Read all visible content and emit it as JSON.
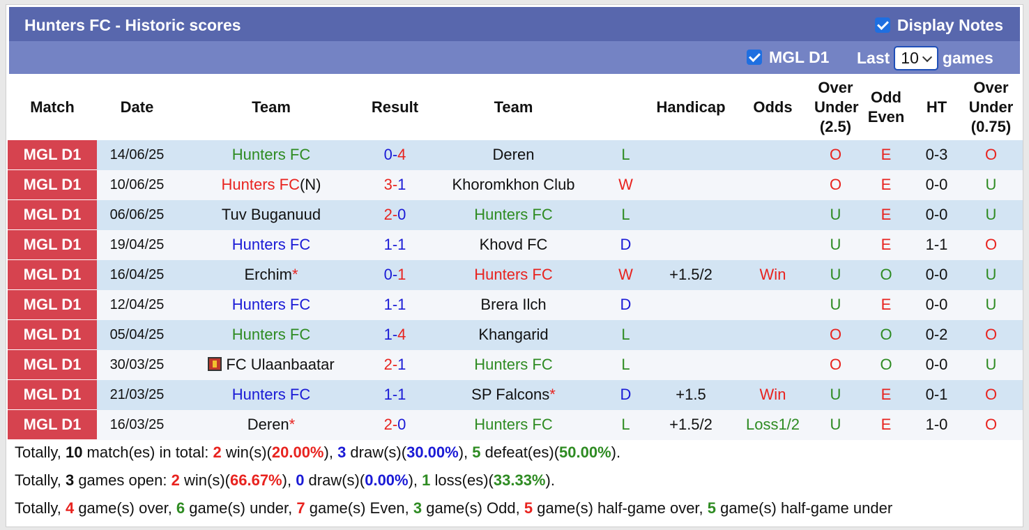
{
  "header": {
    "title": "Hunters FC - Historic scores",
    "display_notes": "Display Notes",
    "league": "MGL D1",
    "last": "Last",
    "games_count": "10",
    "games": "games"
  },
  "colors": {
    "win": "#e8231f",
    "draw": "#1a1ad6",
    "loss": "#2e8b22",
    "match_bg": "#d6434f",
    "row_a": "#d3e4f3",
    "row_b": "#f4f6fa"
  },
  "table": {
    "columns": [
      "Match",
      "Date",
      "Team",
      "Result",
      "Team",
      null,
      "Handicap",
      "Odds",
      "Over Under (2.5)",
      "Odd Even",
      "HT",
      "Over Under (0.75)"
    ],
    "rows": [
      {
        "match": "MGL D1",
        "date": "14/06/25",
        "home": "Hunters FC",
        "home_note": null,
        "score": "0-4",
        "away": "Deren",
        "away_note": null,
        "outcome": "L",
        "handicap": null,
        "odds": null,
        "over_under": "O",
        "odd_even": "E",
        "ht": "0-3",
        "over_under_ht": "O"
      },
      {
        "match": "MGL D1",
        "date": "10/06/25",
        "home": "Hunters FC",
        "home_note": "(N)",
        "score": "3-1",
        "away": "Khoromkhon Club",
        "away_note": null,
        "outcome": "W",
        "handicap": null,
        "odds": null,
        "over_under": "O",
        "odd_even": "E",
        "ht": "0-0",
        "over_under_ht": "U"
      },
      {
        "match": "MGL D1",
        "date": "06/06/25",
        "home": "Tuv Buganuud",
        "home_note": null,
        "score": "2-0",
        "away": "Hunters FC",
        "away_note": null,
        "outcome": "L",
        "handicap": null,
        "odds": null,
        "over_under": "U",
        "odd_even": "E",
        "ht": "0-0",
        "over_under_ht": "U"
      },
      {
        "match": "MGL D1",
        "date": "19/04/25",
        "home": "Hunters FC",
        "home_note": null,
        "score": "1-1",
        "away": "Khovd FC",
        "away_note": null,
        "outcome": "D",
        "handicap": null,
        "odds": null,
        "over_under": "U",
        "odd_even": "E",
        "ht": "1-1",
        "over_under_ht": "O"
      },
      {
        "match": "MGL D1",
        "date": "16/04/25",
        "home": "Erchim",
        "home_note": "*",
        "score": "0-1",
        "away": "Hunters FC",
        "away_note": null,
        "outcome": "W",
        "handicap": "+1.5/2",
        "odds": "Win",
        "over_under": "U",
        "odd_even": "O",
        "ht": "0-0",
        "over_under_ht": "U"
      },
      {
        "match": "MGL D1",
        "date": "12/04/25",
        "home": "Hunters FC",
        "home_note": null,
        "score": "1-1",
        "away": "Brera Ilch",
        "away_note": null,
        "outcome": "D",
        "handicap": null,
        "odds": null,
        "over_under": "U",
        "odd_even": "E",
        "ht": "0-0",
        "over_under_ht": "U"
      },
      {
        "match": "MGL D1",
        "date": "05/04/25",
        "home": "Hunters FC",
        "home_note": null,
        "score": "1-4",
        "away": "Khangarid",
        "away_note": null,
        "outcome": "L",
        "handicap": null,
        "odds": null,
        "over_under": "O",
        "odd_even": "O",
        "ht": "0-2",
        "over_under_ht": "O"
      },
      {
        "match": "MGL D1",
        "date": "30/03/25",
        "home": "FC Ulaanbaatar",
        "home_note": null,
        "score": "2-1",
        "away": "Hunters FC",
        "away_note": null,
        "outcome": "L",
        "handicap": null,
        "odds": null,
        "over_under": "O",
        "odd_even": "O",
        "ht": "0-0",
        "over_under_ht": "U"
      },
      {
        "match": "MGL D1",
        "date": "21/03/25",
        "home": "Hunters FC",
        "home_note": null,
        "score": "1-1",
        "away": "SP Falcons",
        "away_note": "*",
        "outcome": "D",
        "handicap": "+1.5",
        "odds": "Win",
        "over_under": "U",
        "odd_even": "E",
        "ht": "0-1",
        "over_under_ht": "O"
      },
      {
        "match": "MGL D1",
        "date": "16/03/25",
        "home": "Deren",
        "home_note": "*",
        "score": "2-0",
        "away": "Hunters FC",
        "away_note": null,
        "outcome": "L",
        "handicap": "+1.5/2",
        "odds": "Loss1/2",
        "over_under": "U",
        "odd_even": "E",
        "ht": "1-0",
        "over_under_ht": "O"
      }
    ]
  },
  "summary": [
    [
      {
        "text": "Totally, "
      },
      {
        "text": "10",
        "bold": true
      },
      {
        "text": " match(es) in total: "
      },
      {
        "text": "2",
        "bold": true,
        "color": "win"
      },
      {
        "text": " win(s)("
      },
      {
        "text": "20.00%",
        "bold": true,
        "color": "win"
      },
      {
        "text": "), "
      },
      {
        "text": "3",
        "bold": true,
        "color": "draw"
      },
      {
        "text": " draw(s)("
      },
      {
        "text": "30.00%",
        "bold": true,
        "color": "draw"
      },
      {
        "text": "), "
      },
      {
        "text": "5",
        "bold": true,
        "color": "loss"
      },
      {
        "text": " defeat(es)("
      },
      {
        "text": "50.00%",
        "bold": true,
        "color": "loss"
      },
      {
        "text": ")."
      }
    ],
    [
      {
        "text": "Totally, "
      },
      {
        "text": "3",
        "bold": true
      },
      {
        "text": " games open: "
      },
      {
        "text": "2",
        "bold": true,
        "color": "win"
      },
      {
        "text": " win(s)("
      },
      {
        "text": "66.67%",
        "bold": true,
        "color": "win"
      },
      {
        "text": "), "
      },
      {
        "text": "0",
        "bold": true,
        "color": "draw"
      },
      {
        "text": " draw(s)("
      },
      {
        "text": "0.00%",
        "bold": true,
        "color": "draw"
      },
      {
        "text": "), "
      },
      {
        "text": "1",
        "bold": true,
        "color": "loss"
      },
      {
        "text": " loss(es)("
      },
      {
        "text": "33.33%",
        "bold": true,
        "color": "loss"
      },
      {
        "text": ")."
      }
    ],
    [
      {
        "text": "Totally, "
      },
      {
        "text": "4",
        "bold": true,
        "color": "win"
      },
      {
        "text": " game(s) over, "
      },
      {
        "text": "6",
        "bold": true,
        "color": "loss"
      },
      {
        "text": " game(s) under, "
      },
      {
        "text": "7",
        "bold": true,
        "color": "win"
      },
      {
        "text": " game(s) Even, "
      },
      {
        "text": "3",
        "bold": true,
        "color": "loss"
      },
      {
        "text": " game(s) Odd, "
      },
      {
        "text": "5",
        "bold": true,
        "color": "win"
      },
      {
        "text": " game(s) half-game over, "
      },
      {
        "text": "5",
        "bold": true,
        "color": "loss"
      },
      {
        "text": " game(s) half-game under"
      }
    ]
  ]
}
